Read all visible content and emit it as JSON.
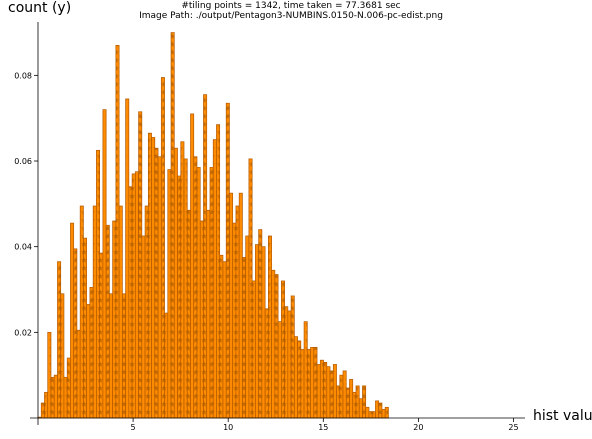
{
  "chart_data": {
    "type": "bar",
    "title_lines": [
      "#tiling points = 1342, time taken = 77.3681 sec",
      "Image Path: ./output/Pentagon3-NUMBINS.0150-N.006-pc-edist.png"
    ],
    "xlabel": "hist value",
    "ylabel": "count (y)",
    "xlim": [
      0,
      25.6
    ],
    "ylim": [
      0,
      0.092
    ],
    "x_ticks": [
      5,
      10,
      15,
      20,
      25
    ],
    "y_ticks": [
      0.02,
      0.04,
      0.06,
      0.08
    ],
    "bin_width": 0.1706,
    "bar_fill": "#ff8c00",
    "bar_edge": "#b35900",
    "hatch": "*",
    "values": [
      0.0002,
      0.0035,
      0.006,
      0.02,
      0.0095,
      0.01,
      0.0365,
      0.029,
      0.0095,
      0.014,
      0.0455,
      0.0395,
      0.0205,
      0.0495,
      0.042,
      0.0265,
      0.0305,
      0.0495,
      0.0625,
      0.0385,
      0.072,
      0.045,
      0.029,
      0.046,
      0.087,
      0.0495,
      0.029,
      0.0745,
      0.054,
      0.057,
      0.0575,
      0.0715,
      0.0425,
      0.0495,
      0.0665,
      0.0655,
      0.063,
      0.061,
      0.0795,
      0.0245,
      0.058,
      0.09,
      0.063,
      0.0565,
      0.0645,
      0.0605,
      0.0485,
      0.071,
      0.061,
      0.0585,
      0.046,
      0.0755,
      0.0485,
      0.0585,
      0.065,
      0.0685,
      0.038,
      0.0365,
      0.0735,
      0.0525,
      0.0455,
      0.0495,
      0.0525,
      0.0375,
      0.0425,
      0.0605,
      0.032,
      0.0405,
      0.044,
      0.04,
      0.0255,
      0.0425,
      0.0345,
      0.0335,
      0.0225,
      0.032,
      0.026,
      0.025,
      0.0285,
      0.019,
      0.018,
      0.016,
      0.0225,
      0.016,
      0.0165,
      0.0165,
      0.0125,
      0.0135,
      0.013,
      0.012,
      0.011,
      0.0125,
      0.0075,
      0.01,
      0.011,
      0.007,
      0.009,
      0.006,
      0.0075,
      0.0045,
      0.0075,
      0.0025,
      0.0015,
      0.0015,
      0.004,
      0.0035,
      0.002,
      0.0025
    ]
  }
}
